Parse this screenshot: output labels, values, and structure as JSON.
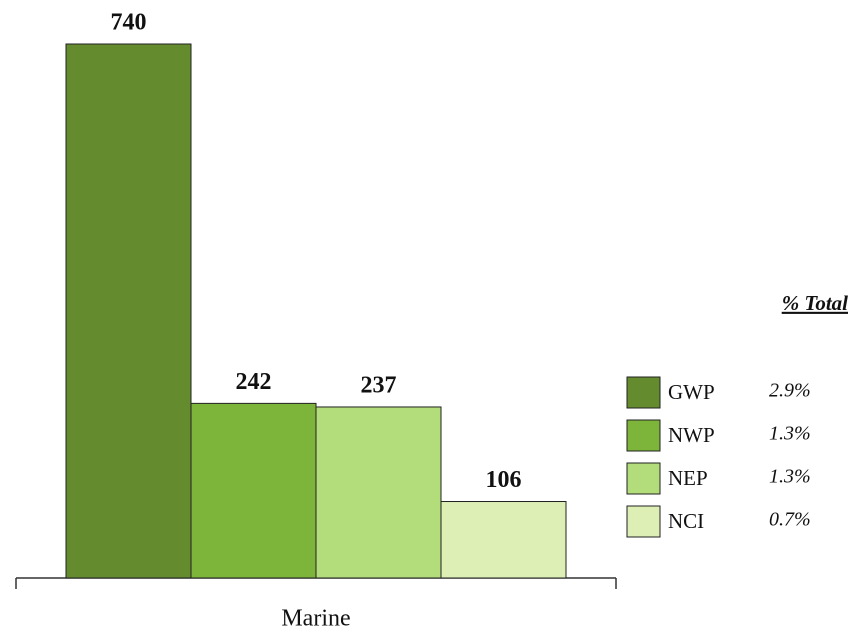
{
  "chart_data": {
    "type": "bar",
    "categories": [
      "Marine"
    ],
    "series": [
      {
        "name": "GWP",
        "color": "#648c2f",
        "values": [
          740
        ],
        "share": "2.9%"
      },
      {
        "name": "NWP",
        "color": "#7cb53a",
        "values": [
          242
        ],
        "share": "1.3%"
      },
      {
        "name": "NEP",
        "color": "#b3dd7b",
        "values": [
          237
        ],
        "share": "1.3%"
      },
      {
        "name": "NCI",
        "color": "#ddefb5",
        "values": [
          106
        ],
        "share": "0.7%"
      }
    ],
    "legend_title": "% Total",
    "legend": "right"
  }
}
